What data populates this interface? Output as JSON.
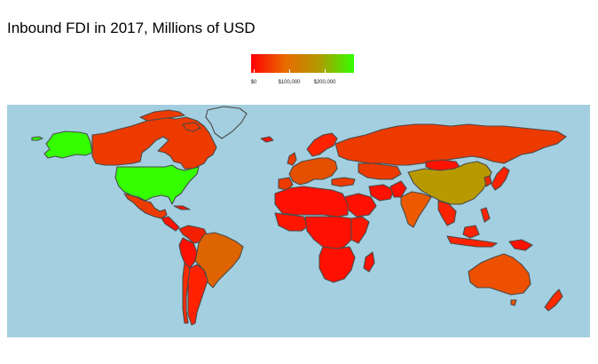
{
  "title": "Inbound FDI in 2017, Millions of USD",
  "legend": {
    "colors": [
      "#ff0000",
      "#e86a00",
      "#b29a00",
      "#33ff00"
    ],
    "ticks": [
      {
        "value": 0,
        "label": "$0"
      },
      {
        "value": 100000,
        "label": "$100,000"
      },
      {
        "value": 200000,
        "label": "$200,000"
      }
    ],
    "min": 0,
    "max": 290000
  },
  "colors": {
    "ocean": "#a3cfe0",
    "border": "#4a4a4a"
  },
  "countries": [
    {
      "name": "United States",
      "fdi": 277000
    },
    {
      "name": "China",
      "fdi": 168000
    },
    {
      "name": "Brazil",
      "fdi": 68000
    },
    {
      "name": "Australia",
      "fdi": 47000
    },
    {
      "name": "India",
      "fdi": 40000
    },
    {
      "name": "Canada",
      "fdi": 24000
    },
    {
      "name": "Russia",
      "fdi": 26000
    },
    {
      "name": "Mexico",
      "fdi": 30000
    },
    {
      "name": "Germany",
      "fdi": 35000
    },
    {
      "name": "France",
      "fdi": 30000
    },
    {
      "name": "United Kingdom",
      "fdi": 15000
    }
  ]
}
